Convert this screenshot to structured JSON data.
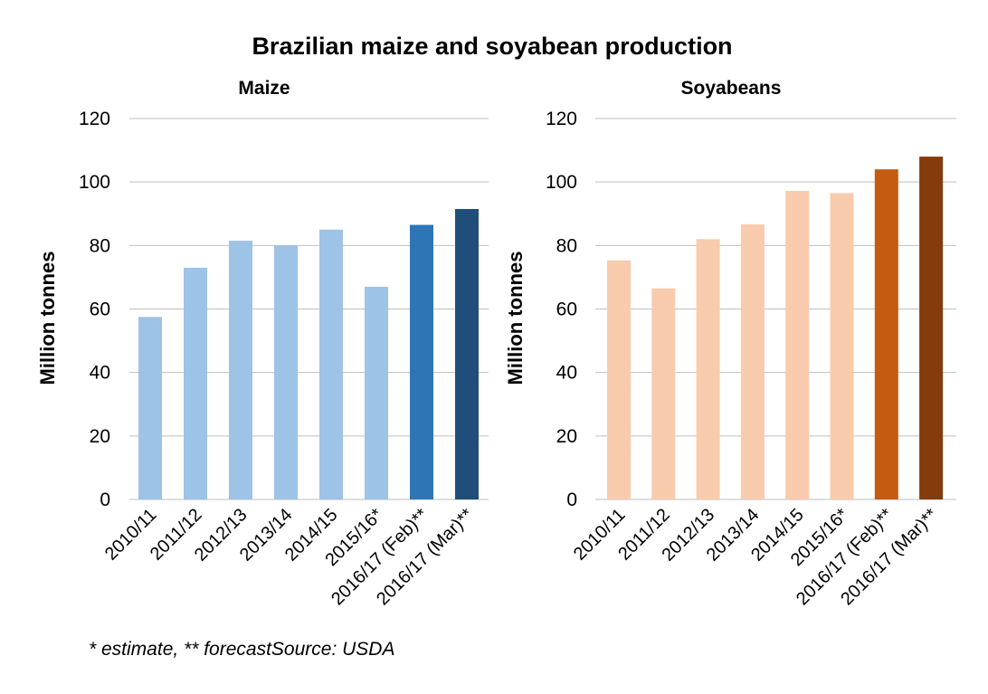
{
  "title": "Brazilian maize and soyabean production",
  "footnote": "* estimate, ** forecastSource: USDA",
  "chart_data": [
    {
      "type": "bar",
      "title": "Maize",
      "xlabel": "",
      "ylabel": "Million tonnes",
      "ylim": [
        0,
        120
      ],
      "yticks": [
        0,
        20,
        40,
        60,
        80,
        100,
        120
      ],
      "grid": true,
      "legend": "none",
      "categories": [
        "2010/11",
        "2011/12",
        "2012/13",
        "2013/14",
        "2014/15",
        "2015/16*",
        "2016/17 (Feb)**",
        "2016/17 (Mar)**"
      ],
      "values": [
        57.5,
        73,
        81.5,
        80,
        85,
        67,
        86.5,
        91.5
      ],
      "colors": [
        "#9dc3e6",
        "#9dc3e6",
        "#9dc3e6",
        "#9dc3e6",
        "#9dc3e6",
        "#9dc3e6",
        "#2e75b6",
        "#1f4e79"
      ]
    },
    {
      "type": "bar",
      "title": "Soyabeans",
      "xlabel": "",
      "ylabel": "Million tonnes",
      "ylim": [
        0,
        120
      ],
      "yticks": [
        0,
        20,
        40,
        60,
        80,
        100,
        120
      ],
      "grid": true,
      "legend": "none",
      "categories": [
        "2010/11",
        "2011/12",
        "2012/13",
        "2013/14",
        "2014/15",
        "2015/16*",
        "2016/17 (Feb)**",
        "2016/17 (Mar)**"
      ],
      "values": [
        75.3,
        66.5,
        82,
        86.7,
        97.2,
        96.5,
        104,
        108
      ],
      "colors": [
        "#f8cbad",
        "#f8cbad",
        "#f8cbad",
        "#f8cbad",
        "#f8cbad",
        "#f8cbad",
        "#c55a11",
        "#843c0c"
      ]
    }
  ]
}
